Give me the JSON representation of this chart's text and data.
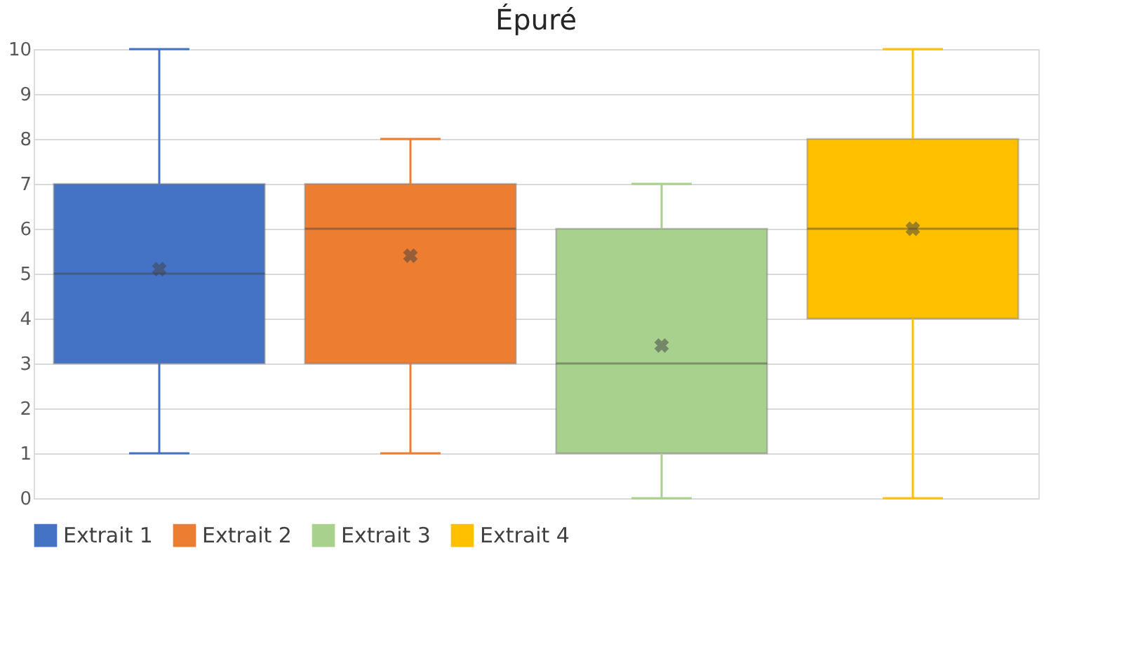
{
  "chart_data": {
    "type": "box",
    "title": "Épuré",
    "categories": [
      null
    ],
    "ylim": [
      0,
      10
    ],
    "yticks": [
      0,
      1,
      2,
      3,
      4,
      5,
      6,
      7,
      8,
      9,
      10
    ],
    "grid": "y",
    "legend": "bottom",
    "tick_labels": "y",
    "series": [
      {
        "name": "Extrait 1",
        "color": "#4472c4",
        "boxes": [
          {
            "low": 1,
            "q1": 3,
            "median": 5,
            "q3": 7,
            "high": 10,
            "mean": 5.1
          }
        ]
      },
      {
        "name": "Extrait 2",
        "color": "#ed7d31",
        "boxes": [
          {
            "low": 1,
            "q1": 3,
            "median": 6,
            "q3": 7,
            "high": 8,
            "mean": 5.4
          }
        ]
      },
      {
        "name": "Extrait 3",
        "color": "#a9d18e",
        "boxes": [
          {
            "low": 0,
            "q1": 1,
            "median": 3,
            "q3": 6,
            "high": 7,
            "mean": 3.4
          }
        ]
      },
      {
        "name": "Extrait 4",
        "color": "#ffc000",
        "boxes": [
          {
            "low": 0,
            "q1": 4,
            "median": 6,
            "q3": 8,
            "high": 10,
            "mean": 6
          }
        ]
      }
    ]
  }
}
